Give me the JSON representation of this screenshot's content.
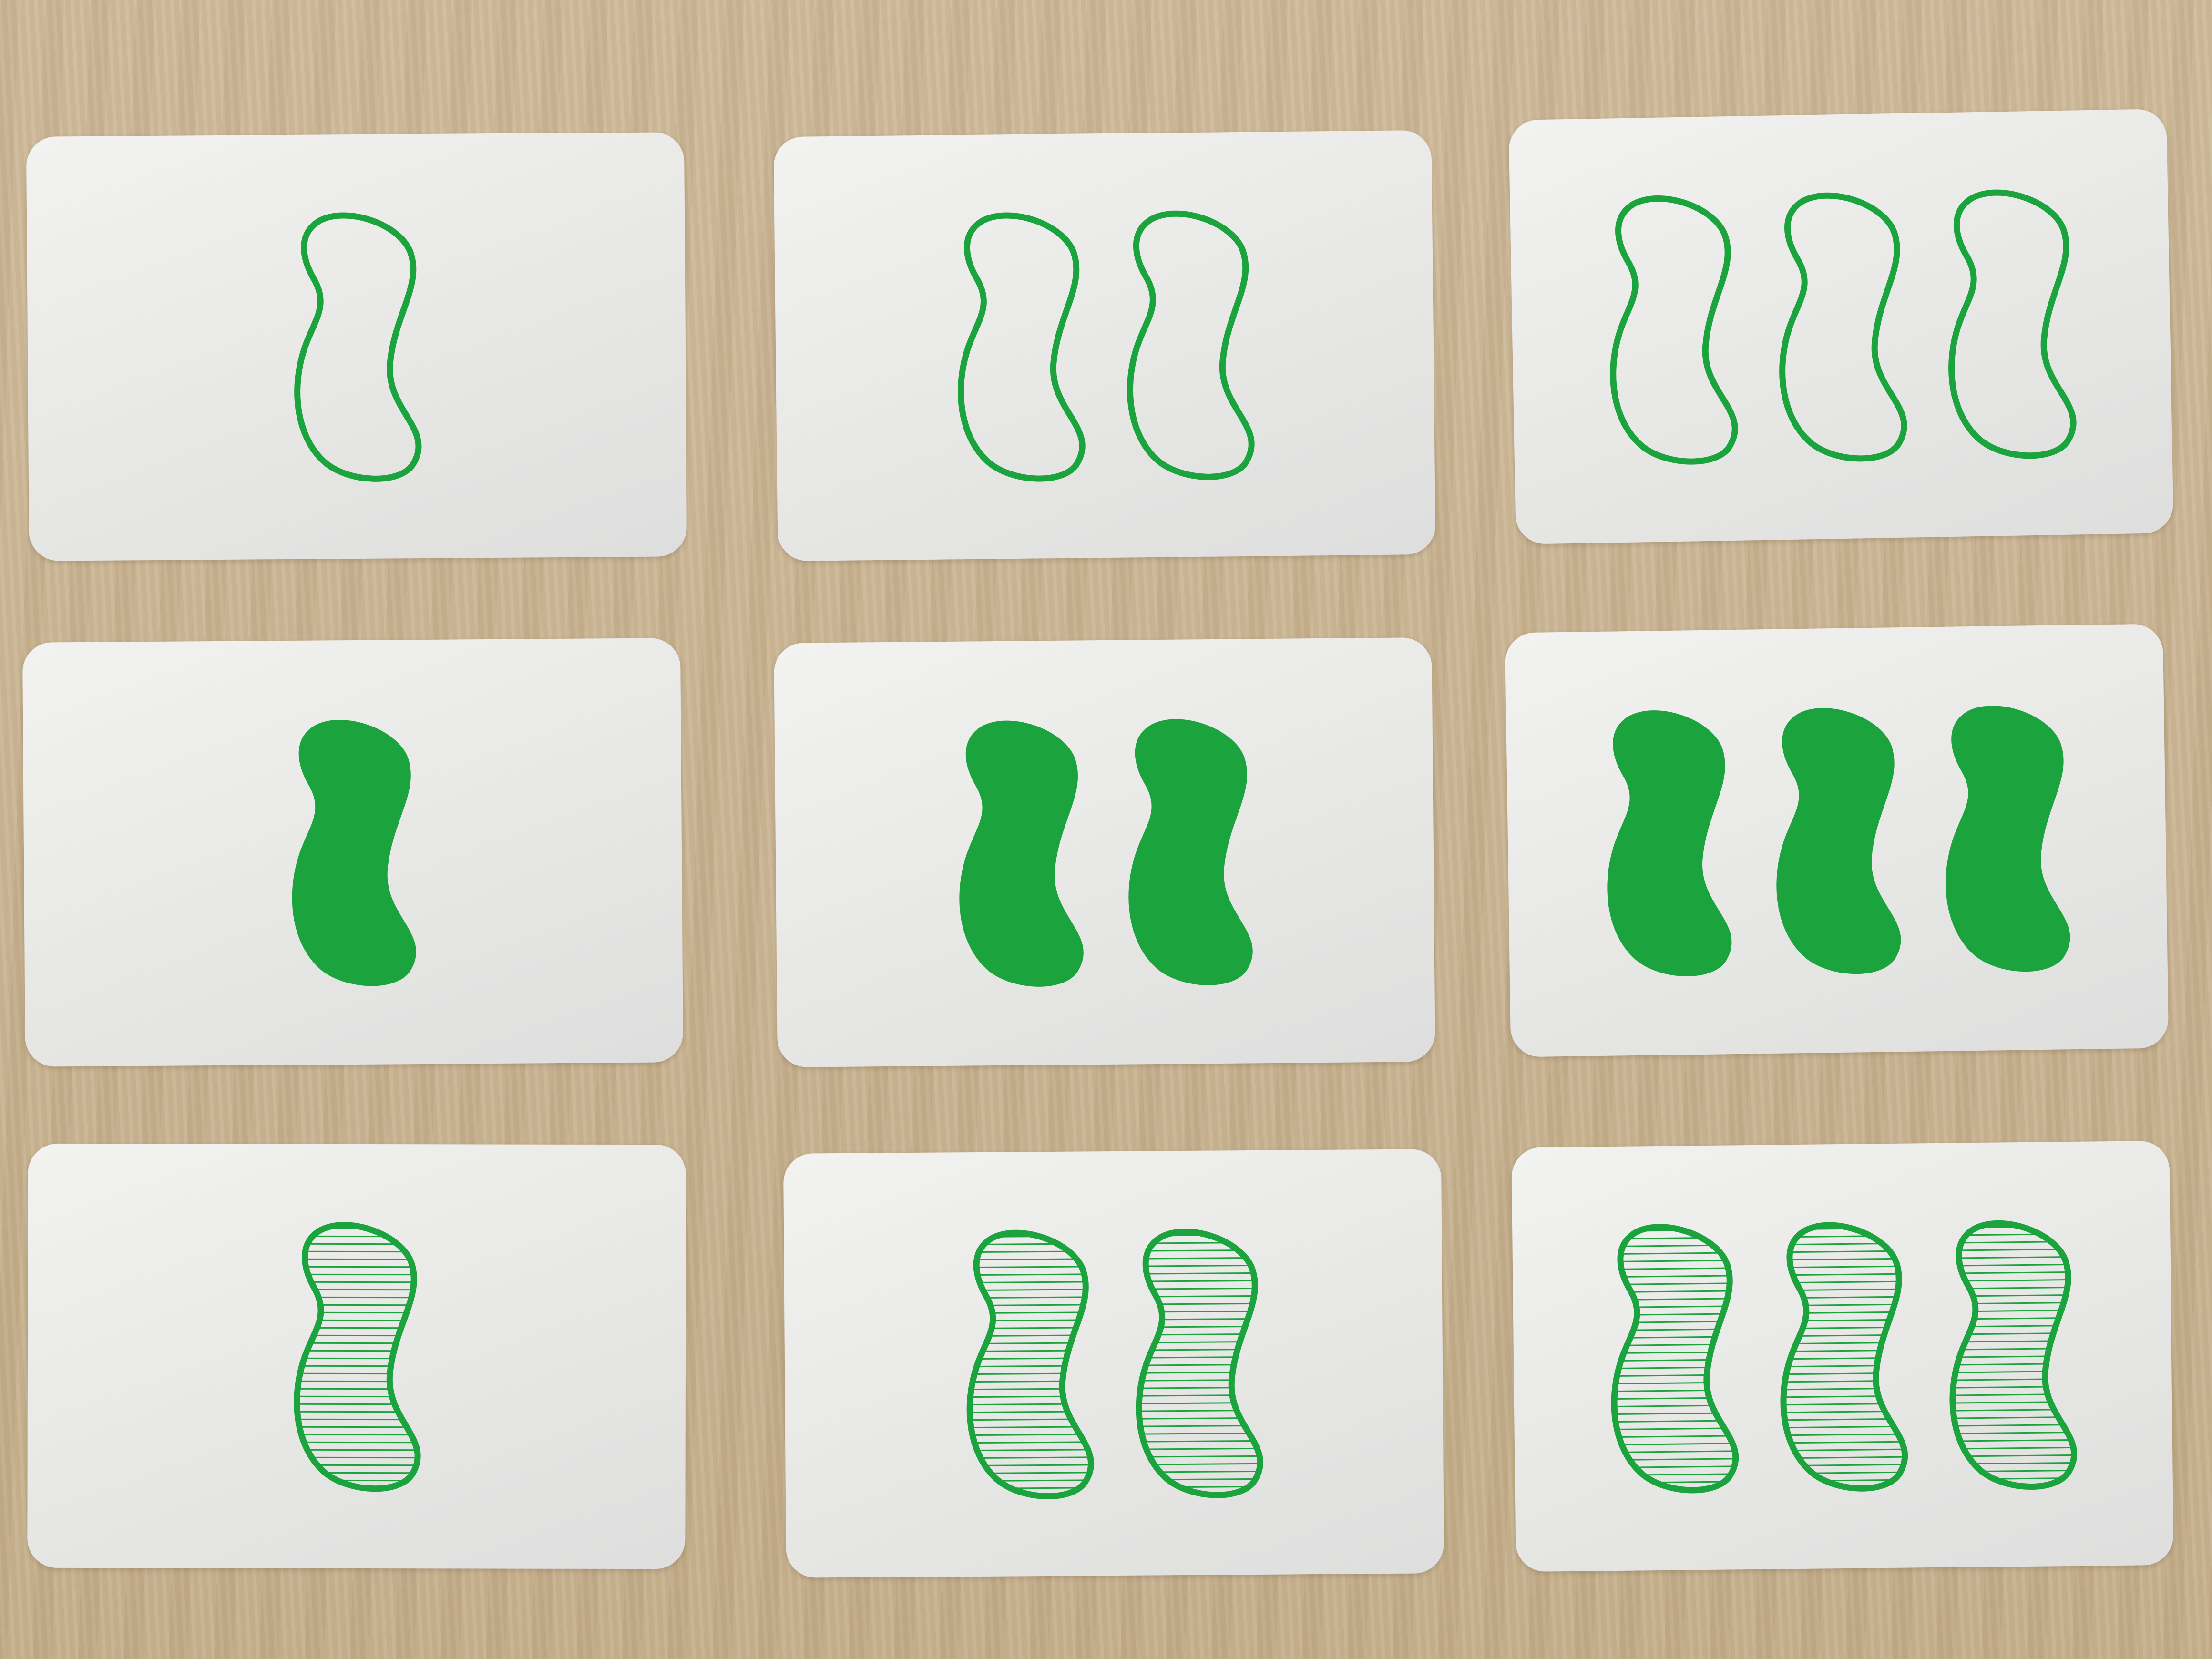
{
  "colors": {
    "shape_green": "#1ba33e",
    "card_white": "#eeeeec",
    "table_wood": "#c9b594"
  },
  "board": {
    "rows": [
      {
        "shading": "open",
        "cards": [
          {
            "count": 1,
            "color": "green",
            "shape": "squiggle",
            "shading": "open"
          },
          {
            "count": 2,
            "color": "green",
            "shape": "squiggle",
            "shading": "open"
          },
          {
            "count": 3,
            "color": "green",
            "shape": "squiggle",
            "shading": "open"
          }
        ]
      },
      {
        "shading": "solid",
        "cards": [
          {
            "count": 1,
            "color": "green",
            "shape": "squiggle",
            "shading": "solid"
          },
          {
            "count": 2,
            "color": "green",
            "shape": "squiggle",
            "shading": "solid"
          },
          {
            "count": 3,
            "color": "green",
            "shape": "squiggle",
            "shading": "solid"
          }
        ]
      },
      {
        "shading": "striped",
        "cards": [
          {
            "count": 1,
            "color": "green",
            "shape": "squiggle",
            "shading": "striped"
          },
          {
            "count": 2,
            "color": "green",
            "shape": "squiggle",
            "shading": "striped"
          },
          {
            "count": 3,
            "color": "green",
            "shape": "squiggle",
            "shading": "striped"
          }
        ]
      }
    ]
  }
}
